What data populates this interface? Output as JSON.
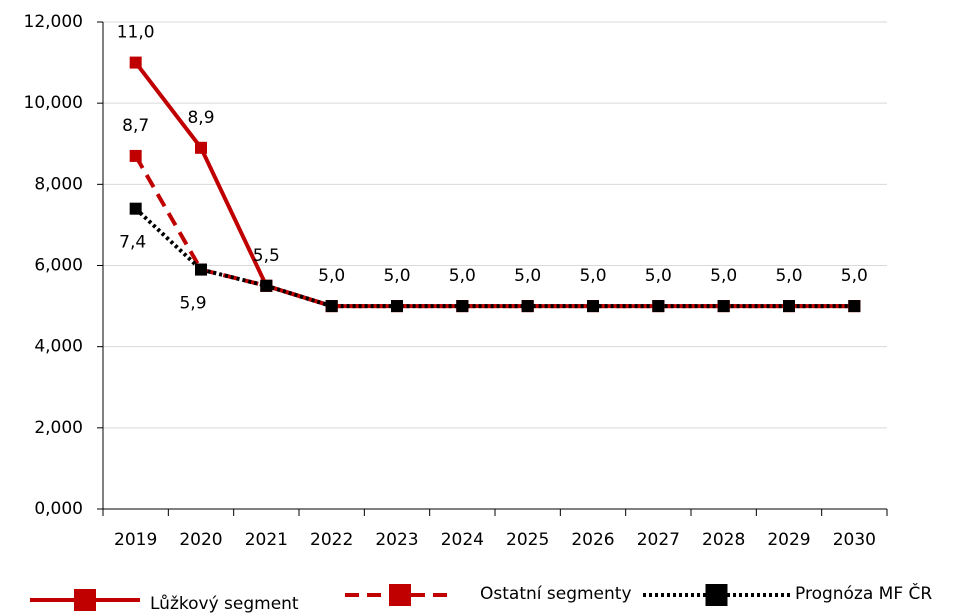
{
  "chart_data": {
    "type": "line",
    "categories": [
      "2019",
      "2020",
      "2021",
      "2022",
      "2023",
      "2024",
      "2025",
      "2026",
      "2027",
      "2028",
      "2029",
      "2030"
    ],
    "series": [
      {
        "name": "Lůžkový segment",
        "color": "#c00000",
        "dash": "solid",
        "values": [
          11.0,
          8.9,
          5.5,
          5.0,
          5.0,
          5.0,
          5.0,
          5.0,
          5.0,
          5.0,
          5.0,
          5.0
        ],
        "value_labels": [
          "11,0",
          "8,9",
          "5,5",
          "5,0",
          "5,0",
          "5,0",
          "5,0",
          "5,0",
          "5,0",
          "5,0",
          "5,0",
          "5,0"
        ]
      },
      {
        "name": "Ostatní segmenty",
        "color": "#c00000",
        "dash": "dashed",
        "values": [
          8.7,
          5.9,
          5.5,
          5.0,
          5.0,
          5.0,
          5.0,
          5.0,
          5.0,
          5.0,
          5.0,
          5.0
        ],
        "value_labels": [
          "8,7",
          null,
          null,
          null,
          null,
          null,
          null,
          null,
          null,
          null,
          null,
          null
        ]
      },
      {
        "name": "Prognóza MF ČR",
        "color": "#000000",
        "dash": "dotted",
        "values": [
          7.4,
          5.9,
          5.5,
          5.0,
          5.0,
          5.0,
          5.0,
          5.0,
          5.0,
          5.0,
          5.0,
          5.0
        ],
        "value_labels": [
          "7,4",
          "5,9",
          null,
          null,
          null,
          null,
          null,
          null,
          null,
          null,
          null,
          null
        ]
      }
    ],
    "ylim": [
      0,
      12
    ],
    "yticks": [
      {
        "value": 0,
        "label": "0,000"
      },
      {
        "value": 2,
        "label": "2,000"
      },
      {
        "value": 4,
        "label": "4,000"
      },
      {
        "value": 6,
        "label": "6,000"
      },
      {
        "value": 8,
        "label": "8,000"
      },
      {
        "value": 10,
        "label": "10,000"
      },
      {
        "value": 12,
        "label": "12,000"
      }
    ],
    "grid": true,
    "legend": "bottom"
  }
}
